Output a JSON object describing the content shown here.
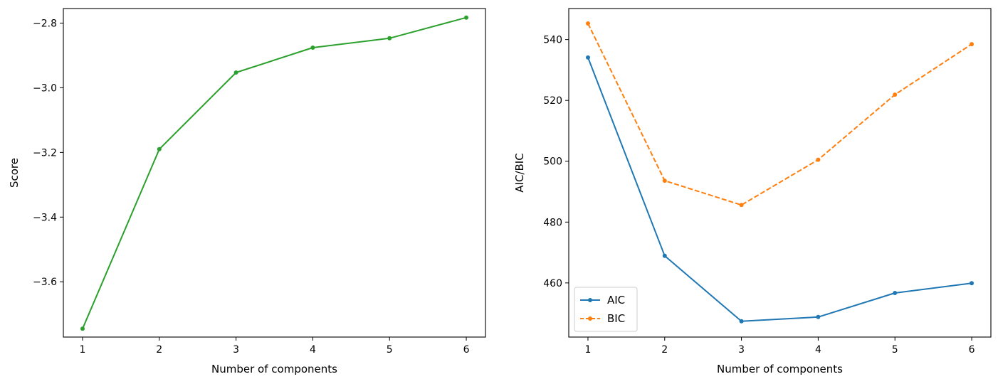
{
  "chart_data": [
    {
      "type": "line",
      "title": "",
      "xlabel": "Number of components",
      "ylabel": "Score",
      "x": [
        1,
        2,
        3,
        4,
        5,
        6
      ],
      "xlim": [
        0.75,
        6.25
      ],
      "ylim": [
        -3.771,
        -2.755
      ],
      "xticks": [
        1,
        2,
        3,
        4,
        5,
        6
      ],
      "yticks": [
        -3.6,
        -3.4,
        -3.2,
        -3.0,
        -2.8
      ],
      "ytick_labels": [
        "−3.6",
        "−3.4",
        "−3.2",
        "−3.0",
        "−2.8"
      ],
      "grid": false,
      "series": [
        {
          "values": [
            -3.745,
            -3.19,
            -2.953,
            -2.876,
            -2.847,
            -2.783
          ],
          "color": "#2ca02c",
          "dash": "solid",
          "marker": "dot"
        }
      ]
    },
    {
      "type": "line",
      "title": "",
      "xlabel": "Number of components",
      "ylabel": "AIC/BIC",
      "x": [
        1,
        2,
        3,
        4,
        5,
        6
      ],
      "xlim": [
        0.75,
        6.25
      ],
      "ylim": [
        442.2,
        550.2
      ],
      "xticks": [
        1,
        2,
        3,
        4,
        5,
        6
      ],
      "yticks": [
        460,
        480,
        500,
        520,
        540
      ],
      "ytick_labels": [
        "460",
        "480",
        "500",
        "520",
        "540"
      ],
      "grid": false,
      "legend": "lower-left",
      "series": [
        {
          "name": "AIC",
          "values": [
            534.1,
            468.9,
            447.4,
            448.8,
            456.7,
            459.9
          ],
          "color": "#1f77b4",
          "dash": "solid",
          "marker": "dot"
        },
        {
          "name": "BIC",
          "values": [
            545.3,
            493.6,
            485.6,
            500.5,
            521.9,
            538.5
          ],
          "color": "#ff7f0e",
          "dash": "dashed",
          "marker": "dot"
        }
      ]
    }
  ]
}
